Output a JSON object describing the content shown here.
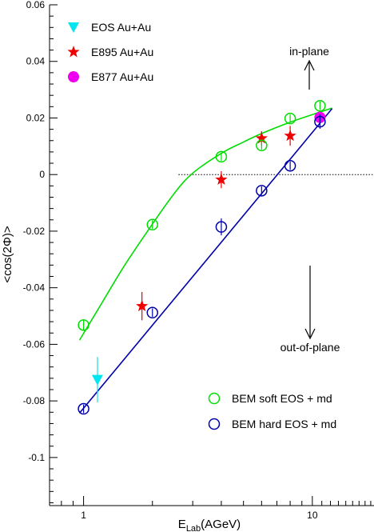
{
  "chart_data": {
    "type": "scatter",
    "title": "",
    "xlabel": "E",
    "xlabel_sub": "Lab",
    "xlabel_unit": "(AGeV)",
    "ylabel": "<cos(2Φ)>",
    "x_scale": "log",
    "xlim": [
      0.71,
      18.6
    ],
    "ylim": [
      -0.117,
      0.06
    ],
    "y_ticks": [
      0.06,
      0.04,
      0.02,
      0,
      -0.02,
      -0.04,
      -0.06,
      -0.08,
      -0.1
    ],
    "y_tick_labels": [
      "0.06",
      "0.04",
      "0.02",
      "0",
      "-0.02",
      "-0.04",
      "-0.06",
      "-0.08",
      "-0.1"
    ],
    "x_tick_labels": [
      {
        "value": 1,
        "label": "1"
      },
      {
        "value": 10,
        "label": "10"
      }
    ],
    "grid": false,
    "legend_top_left": [
      {
        "name": "EOS Au+Au",
        "color": "#00e5ee",
        "marker": "triangle-down"
      },
      {
        "name": "E895 Au+Au",
        "color": "#ee0000",
        "marker": "star"
      },
      {
        "name": "E877 Au+Au",
        "color": "#ee00ee",
        "marker": "circle-filled"
      }
    ],
    "legend_bottom_right": [
      {
        "name": "BEM soft EOS + md",
        "color": "#00dd00",
        "marker": "circle-open"
      },
      {
        "name": "BEM hard EOS + md",
        "color": "#0000aa",
        "marker": "circle-open"
      }
    ],
    "annotations": {
      "in_plane": "in-plane",
      "out_of_plane": "out-of-plane"
    },
    "series": [
      {
        "name": "EOS Au+Au",
        "marker": "triangle-down",
        "color": "#00e5ee",
        "points": [
          {
            "x": 1.15,
            "y": -0.0725,
            "err": 0.008
          }
        ]
      },
      {
        "name": "E895 Au+Au",
        "marker": "star",
        "color": "#ee0000",
        "points": [
          {
            "x": 1.8,
            "y": -0.0465,
            "err": 0.005
          },
          {
            "x": 4.0,
            "y": -0.0018,
            "err": 0.003
          },
          {
            "x": 6.0,
            "y": 0.0128,
            "err": 0.0025
          },
          {
            "x": 8.0,
            "y": 0.0137,
            "err": 0.0035
          }
        ]
      },
      {
        "name": "E877 Au+Au",
        "marker": "circle-filled",
        "color": "#ee00ee",
        "points": [
          {
            "x": 10.8,
            "y": 0.0202,
            "err": 0.002
          }
        ]
      },
      {
        "name": "BEM soft EOS + md",
        "marker": "circle-open",
        "color": "#00dd00",
        "points": [
          {
            "x": 1.0,
            "y": -0.0532,
            "err": 0.002
          },
          {
            "x": 2.0,
            "y": -0.0177,
            "err": 0.0015
          },
          {
            "x": 4.0,
            "y": 0.0063,
            "err": 0.0015
          },
          {
            "x": 6.0,
            "y": 0.0103,
            "err": 0.0015
          },
          {
            "x": 8.0,
            "y": 0.0198,
            "err": 0.0015
          },
          {
            "x": 10.8,
            "y": 0.0243,
            "err": 0.0015
          }
        ],
        "fit": [
          {
            "x": 0.96,
            "y": -0.0585
          },
          {
            "x": 1.2,
            "y": -0.0455
          },
          {
            "x": 1.5,
            "y": -0.0325
          },
          {
            "x": 2.0,
            "y": -0.0175
          },
          {
            "x": 2.5,
            "y": -0.0065
          },
          {
            "x": 3.0,
            "y": 0.0005
          },
          {
            "x": 4.0,
            "y": 0.0075
          },
          {
            "x": 5.0,
            "y": 0.0115
          },
          {
            "x": 6.0,
            "y": 0.0145
          },
          {
            "x": 8.0,
            "y": 0.0185
          },
          {
            "x": 10.0,
            "y": 0.0212
          },
          {
            "x": 12.2,
            "y": 0.0235
          }
        ]
      },
      {
        "name": "BEM hard EOS + md",
        "marker": "circle-open",
        "color": "#0000aa",
        "points": [
          {
            "x": 1.0,
            "y": -0.0828,
            "err": 0.0015
          },
          {
            "x": 2.0,
            "y": -0.0488,
            "err": 0.0015
          },
          {
            "x": 4.0,
            "y": -0.0185,
            "err": 0.003
          },
          {
            "x": 6.0,
            "y": -0.0057,
            "err": 0.0015
          },
          {
            "x": 8.0,
            "y": 0.0031,
            "err": 0.0015
          },
          {
            "x": 10.8,
            "y": 0.0187,
            "err": 0.0025
          }
        ],
        "fit": [
          {
            "x": 0.96,
            "y": -0.0843
          },
          {
            "x": 12.2,
            "y": 0.0233
          }
        ]
      }
    ],
    "reference_line": {
      "y": 0,
      "x_from": 2.6,
      "x_to": 18.6,
      "style": "dotted"
    }
  }
}
